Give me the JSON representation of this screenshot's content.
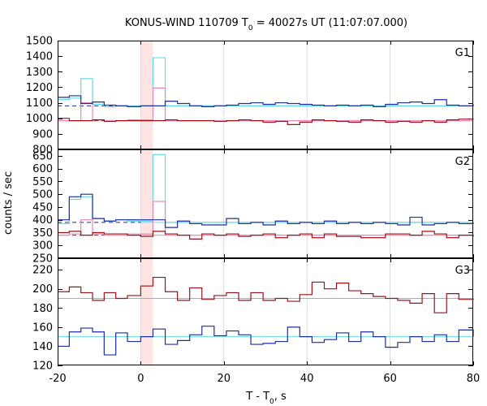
{
  "chart_data": {
    "type": "line",
    "title": "KONUS-WIND 110709 T",
    "title_sub": "0",
    "title_rest": " = 40027s UT (11:07:07.000)",
    "xlabel": "T - T",
    "xlabel_sub": "0",
    "xlabel_rest": ", s",
    "ylabel": "counts / sec",
    "xlim": [
      -20,
      80
    ],
    "x_ticks": [
      -20,
      0,
      20,
      40,
      60,
      80
    ],
    "x_tick_labels": [
      "-20",
      "0",
      "20",
      "40",
      "60",
      "80"
    ],
    "x_grid": [
      -20,
      0,
      20,
      40,
      60,
      80
    ],
    "highlight_band": [
      0,
      2.944
    ],
    "highlight_color": "#ffe4e4",
    "colors": {
      "blue": "#1b2fa8",
      "cyan": "#66d9e8",
      "red": "#a0101a",
      "pink": "#ee88bb",
      "dashed_blue": "#1b2fa8",
      "dashed_red": "#a0101a"
    },
    "panels": [
      {
        "label": "G1",
        "ylim": [
          800,
          1500
        ],
        "yticks": [
          800,
          900,
          1000,
          1100,
          1200,
          1300,
          1400,
          1500
        ],
        "ytick_labels": [
          "800",
          "900",
          "1000",
          "1100",
          "1200",
          "1300",
          "1400",
          "1500"
        ],
        "background_levels": [
          {
            "name": "",
            "value": 1080,
            "color": "blue",
            "dashed": true,
            "x_range": [
              -20,
              0
            ]
          },
          {
            "name": "",
            "value": 985,
            "color": "red",
            "dashed": true,
            "x_range": [
              -20,
              0
            ]
          },
          {
            "name": "",
            "value": 1080,
            "color": "cyan",
            "dashed": false,
            "x_range": [
              0,
              80
            ]
          },
          {
            "name": "",
            "value": 985,
            "color": "pink",
            "dashed": false,
            "x_range": [
              0,
              80
            ]
          }
        ],
        "series": [
          {
            "color": "cyan",
            "x": [
              -20,
              -17.2,
              -14.4,
              -11.6,
              -8.8,
              -6,
              -3.2,
              0,
              2.944,
              5.888,
              80
            ],
            "y": [
              1120,
              1130,
              1255,
              1090,
              1075,
              1080,
              1080,
              1080,
              1390,
              1080,
              1080
            ]
          },
          {
            "color": "pink",
            "x": [
              -20,
              -17.2,
              -14.4,
              -11.6,
              -8.8,
              -6,
              -3.2,
              0,
              2.944,
              5.888,
              80
            ],
            "y": [
              985,
              985,
              1100,
              990,
              985,
              985,
              990,
              990,
              1195,
              985,
              985
            ]
          },
          {
            "color": "blue",
            "x": [
              -20,
              -17.2,
              -14.4,
              -11.6,
              -8.8,
              -6,
              -3.2,
              0,
              2.944,
              5.888,
              8.832,
              11.776,
              14.72,
              17.664,
              20.608,
              23.552,
              26.496,
              29.44,
              32.384,
              35.328,
              38.272,
              41.216,
              44.16,
              47.104,
              50.048,
              52.992,
              55.936,
              58.88,
              61.824,
              64.768,
              67.712,
              70.656,
              73.6,
              76.544,
              80
            ],
            "y": [
              1135,
              1145,
              1095,
              1105,
              1085,
              1080,
              1075,
              1080,
              1080,
              1110,
              1095,
              1080,
              1075,
              1080,
              1085,
              1095,
              1100,
              1090,
              1100,
              1095,
              1090,
              1085,
              1080,
              1085,
              1080,
              1085,
              1075,
              1090,
              1100,
              1105,
              1095,
              1120,
              1085,
              1080,
              1090
            ]
          },
          {
            "color": "red",
            "x": [
              -20,
              -17.2,
              -14.4,
              -11.6,
              -8.8,
              -6,
              -3.2,
              0,
              2.944,
              5.888,
              8.832,
              11.776,
              14.72,
              17.664,
              20.608,
              23.552,
              26.496,
              29.44,
              32.384,
              35.328,
              38.272,
              41.216,
              44.16,
              47.104,
              50.048,
              52.992,
              55.936,
              58.88,
              61.824,
              64.768,
              67.712,
              70.656,
              73.6,
              76.544,
              80
            ],
            "y": [
              1000,
              985,
              985,
              990,
              980,
              985,
              985,
              985,
              985,
              990,
              985,
              985,
              985,
              980,
              985,
              990,
              985,
              975,
              980,
              960,
              975,
              990,
              985,
              980,
              975,
              990,
              985,
              975,
              980,
              975,
              985,
              975,
              990,
              995,
              1000
            ]
          }
        ]
      },
      {
        "label": "G2",
        "ylim": [
          250,
          675
        ],
        "yticks": [
          250,
          300,
          350,
          400,
          450,
          500,
          550,
          600,
          650
        ],
        "ytick_labels": [
          "250",
          "300",
          "350",
          "400",
          "450",
          "500",
          "550",
          "600",
          "650"
        ],
        "background_levels": [
          {
            "name": "",
            "value": 390,
            "color": "blue",
            "dashed": true,
            "x_range": [
              -20,
              0
            ]
          },
          {
            "name": "",
            "value": 340,
            "color": "red",
            "dashed": true,
            "x_range": [
              -20,
              0
            ]
          },
          {
            "name": "",
            "value": 390,
            "color": "cyan",
            "dashed": false,
            "x_range": [
              0,
              80
            ]
          },
          {
            "name": "",
            "value": 340,
            "color": "pink",
            "dashed": false,
            "x_range": [
              0,
              80
            ]
          }
        ],
        "series": [
          {
            "color": "cyan",
            "x": [
              -20,
              -17.2,
              -14.4,
              -11.6,
              -8.8,
              -6,
              -3.2,
              0,
              2.944,
              5.888,
              80
            ],
            "y": [
              385,
              480,
              490,
              405,
              395,
              400,
              395,
              395,
              655,
              390,
              390
            ]
          },
          {
            "color": "pink",
            "x": [
              -20,
              -17.2,
              -14.4,
              -11.6,
              -8.8,
              -6,
              -3.2,
              0,
              2.944,
              5.888,
              80
            ],
            "y": [
              340,
              345,
              400,
              345,
              340,
              340,
              345,
              345,
              472,
              340,
              340
            ]
          },
          {
            "color": "blue",
            "x": [
              -20,
              -17.2,
              -14.4,
              -11.6,
              -8.8,
              -6,
              -3.2,
              0,
              2.944,
              5.888,
              8.832,
              11.776,
              14.72,
              17.664,
              20.608,
              23.552,
              26.496,
              29.44,
              32.384,
              35.328,
              38.272,
              41.216,
              44.16,
              47.104,
              50.048,
              52.992,
              55.936,
              58.88,
              61.824,
              64.768,
              67.712,
              70.656,
              73.6,
              76.544,
              80
            ],
            "y": [
              400,
              490,
              500,
              405,
              395,
              400,
              400,
              400,
              400,
              370,
              395,
              385,
              380,
              380,
              405,
              385,
              390,
              380,
              395,
              385,
              390,
              385,
              395,
              385,
              390,
              385,
              390,
              385,
              380,
              410,
              380,
              385,
              390,
              385,
              390
            ]
          },
          {
            "color": "red",
            "x": [
              -20,
              -17.2,
              -14.4,
              -11.6,
              -8.8,
              -6,
              -3.2,
              0,
              2.944,
              5.888,
              8.832,
              11.776,
              14.72,
              17.664,
              20.608,
              23.552,
              26.496,
              29.44,
              32.384,
              35.328,
              38.272,
              41.216,
              44.16,
              47.104,
              50.048,
              52.992,
              55.936,
              58.88,
              61.824,
              64.768,
              67.712,
              70.656,
              73.6,
              76.544,
              80
            ],
            "y": [
              350,
              355,
              340,
              350,
              345,
              345,
              340,
              335,
              355,
              345,
              340,
              325,
              345,
              340,
              345,
              335,
              340,
              345,
              330,
              340,
              345,
              330,
              345,
              335,
              335,
              330,
              330,
              345,
              345,
              340,
              355,
              345,
              330,
              340,
              335
            ]
          }
        ]
      },
      {
        "label": "G3",
        "ylim": [
          120,
          232
        ],
        "yticks": [
          120,
          140,
          160,
          180,
          200,
          220
        ],
        "ytick_labels": [
          "120",
          "140",
          "160",
          "180",
          "200",
          "220"
        ],
        "background_levels": [
          {
            "name": "",
            "value": 150,
            "color": "cyan",
            "dashed": false,
            "x_range": [
              -20,
              80
            ]
          },
          {
            "name": "",
            "value": 190,
            "color": "pink",
            "dashed": false,
            "x_range": [
              -20,
              80
            ]
          }
        ],
        "series": [
          {
            "color": "blue",
            "x": [
              -20,
              -17.2,
              -14.4,
              -11.6,
              -8.8,
              -6,
              -3.2,
              0,
              2.944,
              5.888,
              8.832,
              11.776,
              14.72,
              17.664,
              20.608,
              23.552,
              26.496,
              29.44,
              32.384,
              35.328,
              38.272,
              41.216,
              44.16,
              47.104,
              50.048,
              52.992,
              55.936,
              58.88,
              61.824,
              64.768,
              67.712,
              70.656,
              73.6,
              76.544,
              80
            ],
            "y": [
              140,
              155,
              159,
              155,
              131,
              154,
              145,
              150,
              158,
              142,
              146,
              152,
              161,
              151,
              156,
              152,
              142,
              143,
              145,
              160,
              150,
              144,
              147,
              154,
              145,
              155,
              150,
              139,
              144,
              150,
              145,
              152,
              145,
              157,
              150
            ]
          },
          {
            "color": "red",
            "x": [
              -20,
              -17.2,
              -14.4,
              -11.6,
              -8.8,
              -6,
              -3.2,
              0,
              2.944,
              5.888,
              8.832,
              11.776,
              14.72,
              17.664,
              20.608,
              23.552,
              26.496,
              29.44,
              32.384,
              35.328,
              38.272,
              41.216,
              44.16,
              47.104,
              50.048,
              52.992,
              55.936,
              58.88,
              61.824,
              64.768,
              67.712,
              70.656,
              73.6,
              76.544,
              80
            ],
            "y": [
              197,
              202,
              196,
              188,
              196,
              190,
              193,
              203,
              212,
              197,
              188,
              201,
              189,
              193,
              196,
              188,
              196,
              188,
              190,
              187,
              194,
              207,
              200,
              206,
              198,
              195,
              192,
              190,
              188,
              185,
              195,
              175,
              195,
              189,
              190
            ]
          }
        ]
      }
    ]
  }
}
